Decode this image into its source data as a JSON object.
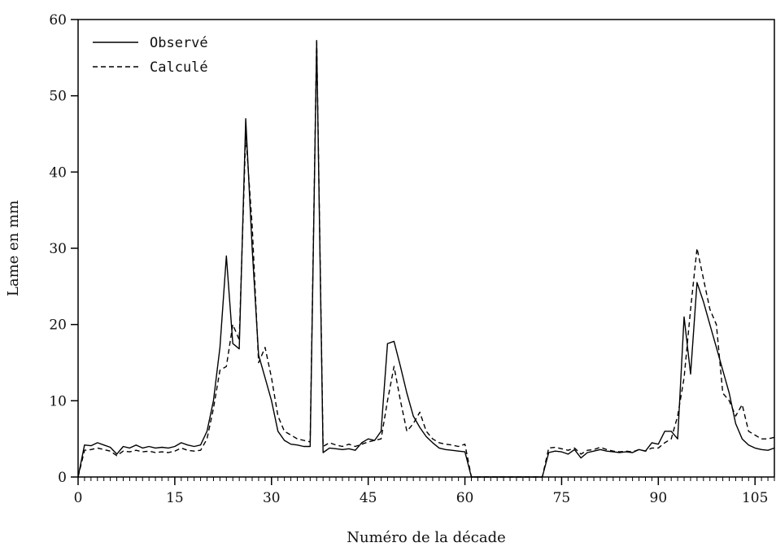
{
  "chart_data": {
    "type": "line",
    "title": "",
    "xlabel": "Numéro de la décade",
    "ylabel": "Lame en mm",
    "xlim": [
      0,
      108
    ],
    "ylim": [
      0,
      60
    ],
    "xticks": [
      0,
      15,
      30,
      45,
      60,
      75,
      90,
      105
    ],
    "yticks": [
      0,
      10,
      20,
      30,
      40,
      50,
      60
    ],
    "grid": false,
    "legend_position": "top-left",
    "series": [
      {
        "name": "Observé",
        "style": "solid",
        "color": "#000000",
        "points": [
          [
            0,
            0
          ],
          [
            1,
            4.2
          ],
          [
            2,
            4.1
          ],
          [
            3,
            4.5
          ],
          [
            4,
            4.2
          ],
          [
            5,
            3.9
          ],
          [
            6,
            3.0
          ],
          [
            7,
            4.0
          ],
          [
            8,
            3.8
          ],
          [
            9,
            4.2
          ],
          [
            10,
            3.8
          ],
          [
            11,
            4.0
          ],
          [
            12,
            3.8
          ],
          [
            13,
            3.9
          ],
          [
            14,
            3.8
          ],
          [
            15,
            4.0
          ],
          [
            16,
            4.5
          ],
          [
            17,
            4.2
          ],
          [
            18,
            4.0
          ],
          [
            19,
            4.2
          ],
          [
            20,
            6.0
          ],
          [
            21,
            10.0
          ],
          [
            22,
            17.0
          ],
          [
            23,
            29.0
          ],
          [
            24,
            17.5
          ],
          [
            25,
            16.8
          ],
          [
            26,
            47.0
          ],
          [
            27,
            30.0
          ],
          [
            28,
            16.0
          ],
          [
            29,
            13.0
          ],
          [
            30,
            10.0
          ],
          [
            31,
            6.0
          ],
          [
            32,
            4.8
          ],
          [
            33,
            4.3
          ],
          [
            34,
            4.2
          ],
          [
            35,
            4.0
          ],
          [
            36,
            4.0
          ],
          [
            37,
            57.0
          ],
          [
            38,
            3.2
          ],
          [
            39,
            3.8
          ],
          [
            40,
            3.7
          ],
          [
            41,
            3.6
          ],
          [
            42,
            3.7
          ],
          [
            43,
            3.5
          ],
          [
            44,
            4.5
          ],
          [
            45,
            5.0
          ],
          [
            46,
            4.8
          ],
          [
            47,
            6.0
          ],
          [
            48,
            17.5
          ],
          [
            49,
            17.8
          ],
          [
            50,
            14.5
          ],
          [
            51,
            11.0
          ],
          [
            52,
            8.0
          ],
          [
            53,
            6.5
          ],
          [
            54,
            5.3
          ],
          [
            55,
            4.5
          ],
          [
            56,
            3.8
          ],
          [
            57,
            3.6
          ],
          [
            58,
            3.5
          ],
          [
            59,
            3.4
          ],
          [
            60,
            3.3
          ],
          [
            61,
            0
          ],
          [
            72,
            0
          ],
          [
            73,
            3.2
          ],
          [
            74,
            3.4
          ],
          [
            75,
            3.3
          ],
          [
            76,
            3.0
          ],
          [
            77,
            3.6
          ],
          [
            78,
            2.5
          ],
          [
            79,
            3.2
          ],
          [
            80,
            3.4
          ],
          [
            81,
            3.6
          ],
          [
            82,
            3.4
          ],
          [
            83,
            3.3
          ],
          [
            84,
            3.2
          ],
          [
            85,
            3.3
          ],
          [
            86,
            3.2
          ],
          [
            87,
            3.6
          ],
          [
            88,
            3.4
          ],
          [
            89,
            4.5
          ],
          [
            90,
            4.3
          ],
          [
            91,
            6.0
          ],
          [
            92,
            6.0
          ],
          [
            93,
            5.0
          ],
          [
            94,
            21.0
          ],
          [
            95,
            13.5
          ],
          [
            96,
            25.5
          ],
          [
            97,
            23.0
          ],
          [
            98,
            20.0
          ],
          [
            99,
            17.0
          ],
          [
            100,
            14.0
          ],
          [
            101,
            11.0
          ],
          [
            102,
            7.0
          ],
          [
            103,
            5.0
          ],
          [
            104,
            4.2
          ],
          [
            105,
            3.8
          ],
          [
            106,
            3.6
          ],
          [
            107,
            3.5
          ],
          [
            108,
            3.8
          ]
        ]
      },
      {
        "name": "Calculé",
        "style": "dashed",
        "color": "#000000",
        "points": [
          [
            0,
            0
          ],
          [
            1,
            3.5
          ],
          [
            2,
            3.6
          ],
          [
            3,
            3.8
          ],
          [
            4,
            3.6
          ],
          [
            5,
            3.4
          ],
          [
            6,
            2.8
          ],
          [
            7,
            3.4
          ],
          [
            8,
            3.3
          ],
          [
            9,
            3.5
          ],
          [
            10,
            3.3
          ],
          [
            11,
            3.4
          ],
          [
            12,
            3.2
          ],
          [
            13,
            3.3
          ],
          [
            14,
            3.2
          ],
          [
            15,
            3.4
          ],
          [
            16,
            3.8
          ],
          [
            17,
            3.5
          ],
          [
            18,
            3.4
          ],
          [
            19,
            3.5
          ],
          [
            20,
            5.0
          ],
          [
            21,
            9.0
          ],
          [
            22,
            14.0
          ],
          [
            23,
            14.5
          ],
          [
            24,
            20.0
          ],
          [
            25,
            18.0
          ],
          [
            26,
            45.0
          ],
          [
            27,
            33.0
          ],
          [
            28,
            15.0
          ],
          [
            29,
            17.0
          ],
          [
            30,
            13.0
          ],
          [
            31,
            8.0
          ],
          [
            32,
            6.0
          ],
          [
            33,
            5.5
          ],
          [
            34,
            5.0
          ],
          [
            35,
            4.8
          ],
          [
            36,
            4.6
          ],
          [
            37,
            57.5
          ],
          [
            38,
            4.0
          ],
          [
            39,
            4.5
          ],
          [
            40,
            4.2
          ],
          [
            41,
            4.0
          ],
          [
            42,
            4.3
          ],
          [
            43,
            4.0
          ],
          [
            44,
            4.3
          ],
          [
            45,
            4.6
          ],
          [
            46,
            4.8
          ],
          [
            47,
            5.0
          ],
          [
            48,
            10.0
          ],
          [
            49,
            14.5
          ],
          [
            50,
            10.0
          ],
          [
            51,
            6.0
          ],
          [
            52,
            7.0
          ],
          [
            53,
            8.5
          ],
          [
            54,
            6.0
          ],
          [
            55,
            5.0
          ],
          [
            56,
            4.5
          ],
          [
            57,
            4.3
          ],
          [
            58,
            4.2
          ],
          [
            59,
            4.0
          ],
          [
            60,
            4.3
          ],
          [
            61,
            0
          ],
          [
            72,
            0
          ],
          [
            73,
            3.8
          ],
          [
            74,
            3.9
          ],
          [
            75,
            3.7
          ],
          [
            76,
            3.5
          ],
          [
            77,
            3.8
          ],
          [
            78,
            3.0
          ],
          [
            79,
            3.5
          ],
          [
            80,
            3.6
          ],
          [
            81,
            3.9
          ],
          [
            82,
            3.6
          ],
          [
            83,
            3.4
          ],
          [
            84,
            3.3
          ],
          [
            85,
            3.4
          ],
          [
            86,
            3.3
          ],
          [
            87,
            3.6
          ],
          [
            88,
            3.4
          ],
          [
            89,
            3.8
          ],
          [
            90,
            3.8
          ],
          [
            91,
            4.5
          ],
          [
            92,
            5.0
          ],
          [
            93,
            8.0
          ],
          [
            94,
            13.0
          ],
          [
            95,
            22.0
          ],
          [
            96,
            30.0
          ],
          [
            97,
            26.0
          ],
          [
            98,
            22.0
          ],
          [
            99,
            20.0
          ],
          [
            100,
            11.0
          ],
          [
            101,
            10.0
          ],
          [
            102,
            8.0
          ],
          [
            103,
            9.5
          ],
          [
            104,
            6.0
          ],
          [
            105,
            5.5
          ],
          [
            106,
            5.0
          ],
          [
            107,
            5.0
          ],
          [
            108,
            5.2
          ]
        ]
      }
    ]
  }
}
